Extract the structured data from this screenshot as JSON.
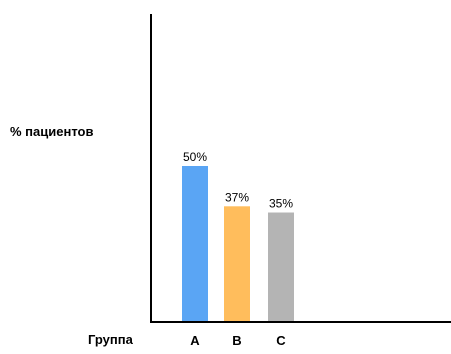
{
  "chart_data": {
    "type": "bar",
    "title": "",
    "ylabel": "% пациентов",
    "xlabel": "Группа",
    "categories": [
      "A",
      "B",
      "C"
    ],
    "values": [
      50,
      37,
      35
    ],
    "data_labels": [
      "50%",
      "37%",
      "35%"
    ],
    "colors": [
      "#5aa5f4",
      "#ffbd5c",
      "#b4b4b4"
    ],
    "ylim": [
      0,
      100
    ],
    "grid": false,
    "legend": "none"
  }
}
